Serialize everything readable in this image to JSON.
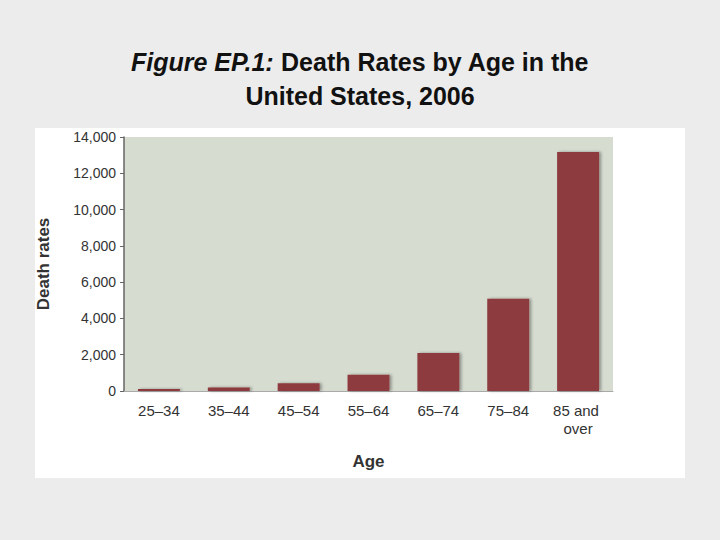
{
  "chart_data": {
    "type": "bar",
    "title": "Figure EP.1: Death Rates by Age in the United States, 2006",
    "x_label": "Age",
    "y_label": "Death rates",
    "categories": [
      "25–34",
      "35–44",
      "45–54",
      "55–64",
      "65–74",
      "75–84",
      "85 and over"
    ],
    "values": [
      105,
      190,
      430,
      890,
      2100,
      5080,
      13170
    ],
    "color": "#8e3a3f",
    "ylim": [
      0,
      14000
    ],
    "yticks": [
      0,
      {
        "value": 2000,
        "label": "2,000"
      },
      {
        "value": 4000,
        "label": "4,000"
      },
      {
        "value": 6000,
        "label": "6,000"
      },
      {
        "value": 8000,
        "label": "8,000"
      },
      {
        "value": 10000,
        "label": "10,000"
      },
      {
        "value": 12000,
        "label": "12,000"
      },
      {
        "value": 14000,
        "label": "14,000"
      }
    ],
    "grid": false
  }
}
